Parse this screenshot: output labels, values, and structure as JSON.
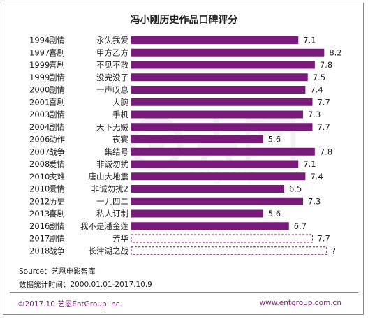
{
  "chart_data": {
    "type": "bar",
    "orientation": "horizontal",
    "title": "冯小刚历史作品口碑评分",
    "xlim": [
      0,
      9
    ],
    "bar_color": "#7a1a7a",
    "rows": [
      {
        "year": "1994",
        "genre": "剧情",
        "movie": "永失我爱",
        "value": 7.1,
        "label": "7.1",
        "pending": false
      },
      {
        "year": "1997",
        "genre": "喜剧",
        "movie": "甲方乙方",
        "value": 8.2,
        "label": "8.2",
        "pending": false
      },
      {
        "year": "1999",
        "genre": "喜剧",
        "movie": "不见不散",
        "value": 7.8,
        "label": "7.8",
        "pending": false
      },
      {
        "year": "1999",
        "genre": "剧情",
        "movie": "没完没了",
        "value": 7.5,
        "label": "7.5",
        "pending": false
      },
      {
        "year": "2000",
        "genre": "剧情",
        "movie": "一声叹息",
        "value": 7.4,
        "label": "7.4",
        "pending": false
      },
      {
        "year": "2001",
        "genre": "喜剧",
        "movie": "大腕",
        "value": 7.7,
        "label": "7.7",
        "pending": false
      },
      {
        "year": "2003",
        "genre": "剧情",
        "movie": "手机",
        "value": 7.3,
        "label": "7.3",
        "pending": false
      },
      {
        "year": "2004",
        "genre": "剧情",
        "movie": "天下无贼",
        "value": 7.7,
        "label": "7.7",
        "pending": false
      },
      {
        "year": "2006",
        "genre": "动作",
        "movie": "夜宴",
        "value": 5.6,
        "label": "5.6",
        "pending": false
      },
      {
        "year": "2007",
        "genre": "战争",
        "movie": "集结号",
        "value": 7.8,
        "label": "7.8",
        "pending": false
      },
      {
        "year": "2008",
        "genre": "爱情",
        "movie": "非诚勿扰",
        "value": 7.1,
        "label": "7.1",
        "pending": false
      },
      {
        "year": "2010",
        "genre": "灾难",
        "movie": "唐山大地震",
        "value": 7.4,
        "label": "7.4",
        "pending": false
      },
      {
        "year": "2010",
        "genre": "爱情",
        "movie": "非诚勿扰2",
        "value": 6.5,
        "label": "6.5",
        "pending": false
      },
      {
        "year": "2012",
        "genre": "历史",
        "movie": "一九四二",
        "value": 7.3,
        "label": "7.3",
        "pending": false
      },
      {
        "year": "2013",
        "genre": "喜剧",
        "movie": "私人订制",
        "value": 5.6,
        "label": "5.6",
        "pending": false
      },
      {
        "year": "2016",
        "genre": "剧情",
        "movie": "我不是潘金莲",
        "value": 6.7,
        "label": "6.7",
        "pending": false
      },
      {
        "year": "2017",
        "genre": "剧情",
        "movie": "芳华",
        "value": 7.7,
        "label": "7.7",
        "pending": true
      },
      {
        "year": "2018",
        "genre": "战争",
        "movie": "长津湖之战",
        "value": 8.3,
        "label": "?",
        "pending": true
      }
    ]
  },
  "source_line": "Source：艺恩电影智库",
  "period_line": "数据统计时间：2000.01.01-2017.10.9",
  "footer_left": "©2017.10 艺恩EntGroup Inc.",
  "footer_right": "www.entgroup.com.cn"
}
